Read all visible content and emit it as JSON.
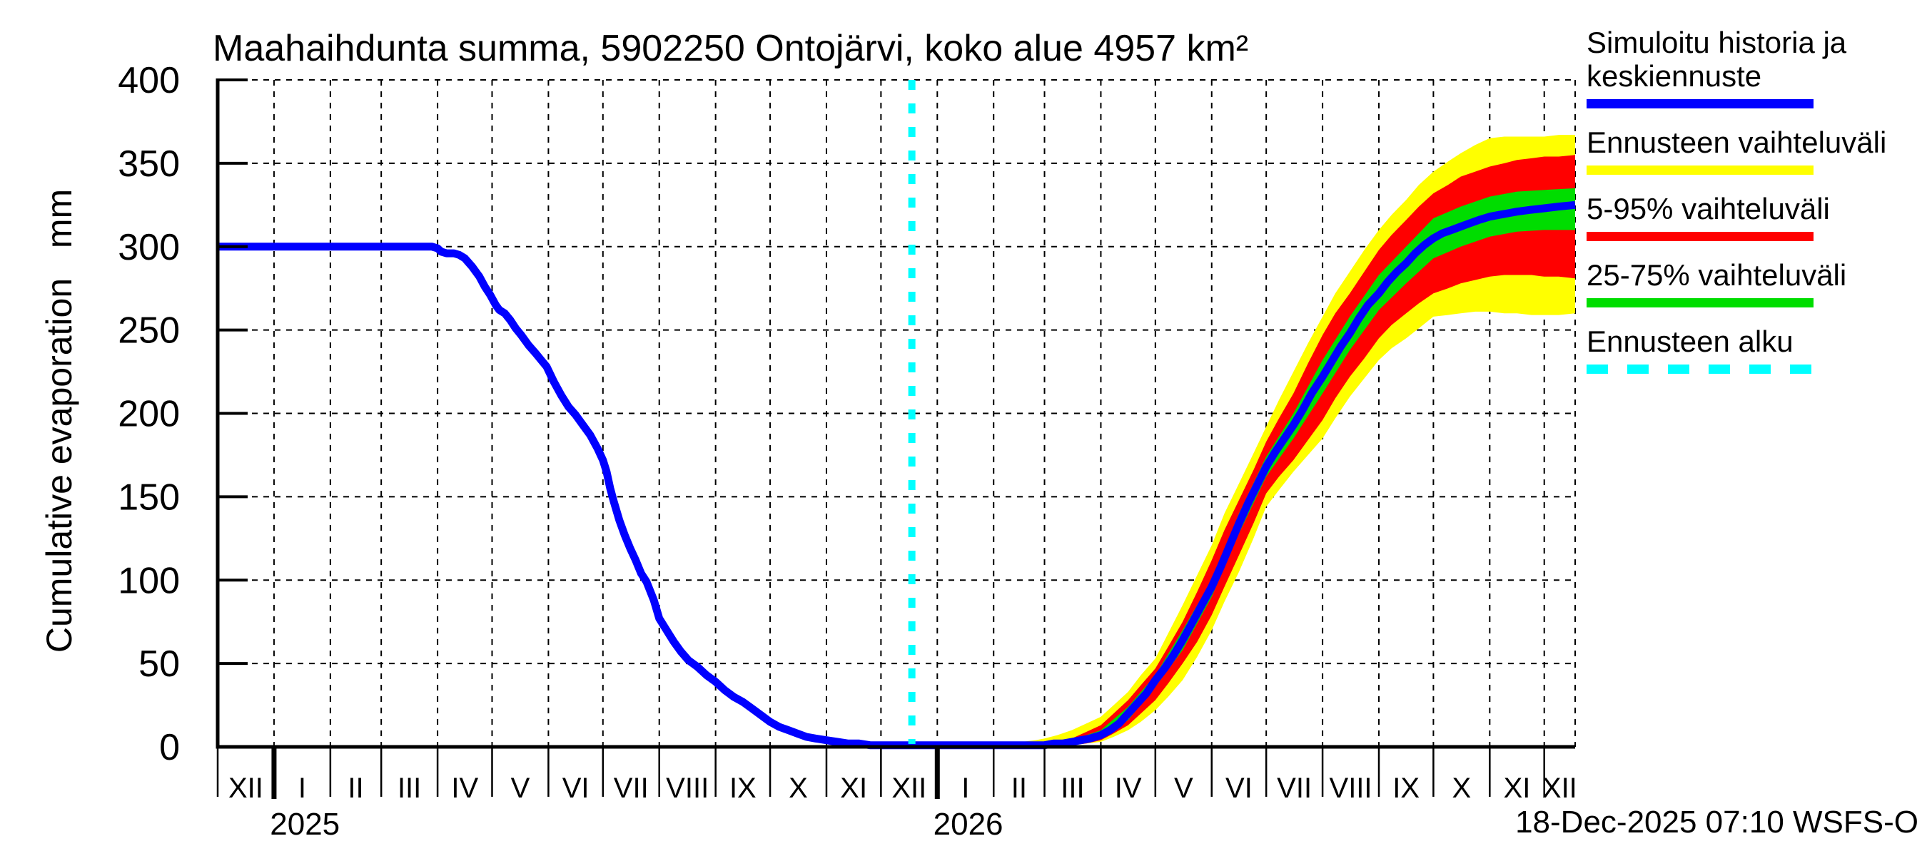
{
  "chart_data": {
    "type": "line",
    "title": "Maahaihdunta summa, 5902250 Ontojärvi, koko alue 4957 km²",
    "ylabel": "Cumulative evaporation   mm",
    "footer": "18-Dec-2025 07:10 WSFS-O",
    "ylim": [
      0,
      400
    ],
    "yticks": [
      0,
      50,
      100,
      150,
      200,
      250,
      300,
      350,
      400
    ],
    "grid": true,
    "x_axis": {
      "start_date": "01-Dec-2024",
      "end_date": "18-Dec-2026",
      "total_days": 747,
      "month_boundaries_days": [
        0,
        31,
        62,
        90,
        121,
        151,
        182,
        212,
        243,
        274,
        304,
        335,
        365,
        396,
        427,
        455,
        486,
        516,
        547,
        577,
        608,
        639,
        669,
        700,
        730,
        747
      ],
      "month_labels": [
        "XII",
        "I",
        "II",
        "III",
        "IV",
        "V",
        "VI",
        "VII",
        "VIII",
        "IX",
        "X",
        "XI",
        "XII",
        "I",
        "II",
        "III",
        "IV",
        "V",
        "VI",
        "VII",
        "VIII",
        "IX",
        "X",
        "XI",
        "XII"
      ],
      "year_tick_days": [
        31,
        396
      ],
      "year_labels": [
        {
          "label": "2025",
          "day": 48
        },
        {
          "label": "2026",
          "day": 413
        }
      ]
    },
    "forecast_start_day": 382,
    "forecast_start_label": "Ennusteen alku",
    "colors": {
      "median": "#0000ff",
      "range_full": "#ffff00",
      "range_5_95": "#ff0000",
      "range_25_75": "#00dd00",
      "forecast_start": "#00ffff",
      "axis": "#000000"
    },
    "series": [
      {
        "name": "Simuloitu historia ja keskiennuste",
        "style": "line",
        "points": [
          [
            0,
            300
          ],
          [
            115,
            300
          ],
          [
            118,
            300
          ],
          [
            121,
            299
          ],
          [
            123,
            297
          ],
          [
            126,
            296
          ],
          [
            130,
            296
          ],
          [
            133,
            295
          ],
          [
            136,
            293
          ],
          [
            140,
            288
          ],
          [
            144,
            282
          ],
          [
            147,
            276
          ],
          [
            150,
            271
          ],
          [
            153,
            265
          ],
          [
            155,
            262
          ],
          [
            158,
            260
          ],
          [
            161,
            256
          ],
          [
            164,
            251
          ],
          [
            167,
            247
          ],
          [
            171,
            241
          ],
          [
            175,
            236
          ],
          [
            178,
            232
          ],
          [
            181,
            228
          ],
          [
            185,
            219
          ],
          [
            189,
            211
          ],
          [
            193,
            204
          ],
          [
            197,
            199
          ],
          [
            201,
            193
          ],
          [
            205,
            187
          ],
          [
            209,
            179
          ],
          [
            212,
            172
          ],
          [
            214,
            165
          ],
          [
            216,
            155
          ],
          [
            218,
            147
          ],
          [
            221,
            136
          ],
          [
            224,
            127
          ],
          [
            227,
            119
          ],
          [
            230,
            112
          ],
          [
            233,
            104
          ],
          [
            236,
            99
          ],
          [
            240,
            88
          ],
          [
            243,
            77
          ],
          [
            247,
            70
          ],
          [
            251,
            63
          ],
          [
            255,
            57
          ],
          [
            259,
            52
          ],
          [
            264,
            48
          ],
          [
            269,
            43
          ],
          [
            274,
            39
          ],
          [
            279,
            34
          ],
          [
            284,
            30
          ],
          [
            289,
            27
          ],
          [
            294,
            23
          ],
          [
            299,
            19
          ],
          [
            304,
            15
          ],
          [
            309,
            12
          ],
          [
            314,
            10
          ],
          [
            319,
            8
          ],
          [
            324,
            6
          ],
          [
            329,
            5
          ],
          [
            335,
            4
          ],
          [
            341,
            3
          ],
          [
            347,
            2
          ],
          [
            353,
            2
          ],
          [
            359,
            1
          ],
          [
            365,
            1
          ],
          [
            372,
            1
          ],
          [
            382,
            1
          ],
          [
            400,
            1
          ],
          [
            420,
            1
          ],
          [
            440,
            1
          ],
          [
            450,
            1
          ],
          [
            455,
            1
          ],
          [
            460,
            2
          ],
          [
            465,
            2
          ],
          [
            470,
            3
          ],
          [
            475,
            4
          ],
          [
            480,
            5
          ],
          [
            486,
            7
          ],
          [
            491,
            10
          ],
          [
            496,
            14
          ],
          [
            501,
            20
          ],
          [
            506,
            26
          ],
          [
            511,
            32
          ],
          [
            516,
            40
          ],
          [
            521,
            47
          ],
          [
            526,
            55
          ],
          [
            531,
            64
          ],
          [
            536,
            74
          ],
          [
            541,
            84
          ],
          [
            547,
            96
          ],
          [
            552,
            108
          ],
          [
            557,
            121
          ],
          [
            562,
            134
          ],
          [
            567,
            146
          ],
          [
            572,
            157
          ],
          [
            577,
            168
          ],
          [
            582,
            177
          ],
          [
            587,
            185
          ],
          [
            592,
            193
          ],
          [
            597,
            202
          ],
          [
            602,
            212
          ],
          [
            608,
            222
          ],
          [
            613,
            231
          ],
          [
            618,
            240
          ],
          [
            623,
            248
          ],
          [
            628,
            257
          ],
          [
            633,
            265
          ],
          [
            639,
            272
          ],
          [
            644,
            279
          ],
          [
            649,
            285
          ],
          [
            654,
            290
          ],
          [
            659,
            296
          ],
          [
            664,
            301
          ],
          [
            669,
            305
          ],
          [
            674,
            308
          ],
          [
            679,
            310
          ],
          [
            684,
            312
          ],
          [
            689,
            314
          ],
          [
            694,
            316
          ],
          [
            700,
            318
          ],
          [
            705,
            319
          ],
          [
            710,
            320
          ],
          [
            715,
            321
          ],
          [
            722,
            322
          ],
          [
            730,
            323
          ],
          [
            738,
            324
          ],
          [
            747,
            325
          ]
        ]
      },
      {
        "name": "Ennusteen vaihteluväli",
        "style": "band",
        "points": [
          [
            382,
            0,
            1
          ],
          [
            420,
            0,
            1
          ],
          [
            435,
            0,
            2
          ],
          [
            450,
            0,
            4
          ],
          [
            455,
            0,
            5
          ],
          [
            462,
            0,
            7
          ],
          [
            470,
            1,
            10
          ],
          [
            478,
            2,
            14
          ],
          [
            486,
            3,
            18
          ],
          [
            493,
            6,
            25
          ],
          [
            501,
            10,
            33
          ],
          [
            508,
            15,
            43
          ],
          [
            516,
            22,
            53
          ],
          [
            523,
            30,
            68
          ],
          [
            531,
            40,
            85
          ],
          [
            539,
            54,
            103
          ],
          [
            547,
            70,
            121
          ],
          [
            554,
            87,
            140
          ],
          [
            562,
            105,
            158
          ],
          [
            570,
            125,
            176
          ],
          [
            577,
            144,
            192
          ],
          [
            584,
            154,
            208
          ],
          [
            592,
            165,
            225
          ],
          [
            600,
            175,
            242
          ],
          [
            608,
            185,
            258
          ],
          [
            615,
            197,
            272
          ],
          [
            623,
            210,
            285
          ],
          [
            631,
            221,
            298
          ],
          [
            639,
            232,
            310
          ],
          [
            646,
            239,
            319
          ],
          [
            654,
            245,
            328
          ],
          [
            661,
            251,
            337
          ],
          [
            669,
            258,
            345
          ],
          [
            677,
            259,
            351
          ],
          [
            684,
            260,
            356
          ],
          [
            692,
            261,
            361
          ],
          [
            700,
            261,
            365
          ],
          [
            708,
            260,
            366
          ],
          [
            715,
            260,
            366
          ],
          [
            723,
            259,
            366
          ],
          [
            730,
            259,
            366
          ],
          [
            738,
            259,
            367
          ],
          [
            747,
            260,
            367
          ]
        ]
      },
      {
        "name": "5-95% vaihteluväli",
        "style": "band",
        "points": [
          [
            382,
            0,
            1
          ],
          [
            450,
            0,
            2
          ],
          [
            455,
            0,
            2
          ],
          [
            462,
            1,
            4
          ],
          [
            470,
            1,
            5
          ],
          [
            478,
            2,
            9
          ],
          [
            486,
            4,
            13
          ],
          [
            493,
            8,
            20
          ],
          [
            501,
            13,
            28
          ],
          [
            508,
            20,
            37
          ],
          [
            516,
            28,
            47
          ],
          [
            523,
            38,
            60
          ],
          [
            531,
            50,
            75
          ],
          [
            539,
            63,
            93
          ],
          [
            547,
            79,
            112
          ],
          [
            554,
            96,
            130
          ],
          [
            562,
            115,
            148
          ],
          [
            570,
            134,
            166
          ],
          [
            577,
            152,
            183
          ],
          [
            584,
            162,
            197
          ],
          [
            592,
            172,
            212
          ],
          [
            600,
            184,
            230
          ],
          [
            608,
            196,
            247
          ],
          [
            615,
            209,
            260
          ],
          [
            623,
            222,
            272
          ],
          [
            631,
            233,
            285
          ],
          [
            639,
            245,
            298
          ],
          [
            646,
            253,
            307
          ],
          [
            654,
            260,
            316
          ],
          [
            661,
            266,
            324
          ],
          [
            669,
            272,
            332
          ],
          [
            677,
            275,
            337
          ],
          [
            684,
            278,
            342
          ],
          [
            692,
            280,
            345
          ],
          [
            700,
            282,
            348
          ],
          [
            708,
            283,
            350
          ],
          [
            715,
            283,
            352
          ],
          [
            723,
            283,
            353
          ],
          [
            730,
            282,
            354
          ],
          [
            738,
            282,
            354
          ],
          [
            747,
            281,
            355
          ]
        ]
      },
      {
        "name": "25-75% vaihteluväli",
        "style": "band",
        "points": [
          [
            382,
            0,
            1
          ],
          [
            455,
            0,
            1
          ],
          [
            470,
            2,
            4
          ],
          [
            486,
            5,
            10
          ],
          [
            501,
            16,
            24
          ],
          [
            516,
            36,
            43
          ],
          [
            531,
            58,
            70
          ],
          [
            547,
            90,
            100
          ],
          [
            562,
            128,
            140
          ],
          [
            577,
            162,
            174
          ],
          [
            592,
            185,
            200
          ],
          [
            608,
            212,
            232
          ],
          [
            623,
            238,
            258
          ],
          [
            639,
            262,
            283
          ],
          [
            654,
            278,
            300
          ],
          [
            669,
            293,
            317
          ],
          [
            684,
            300,
            324
          ],
          [
            700,
            306,
            330
          ],
          [
            715,
            309,
            333
          ],
          [
            730,
            310,
            334
          ],
          [
            747,
            310,
            335
          ]
        ]
      }
    ]
  },
  "legend": {
    "items": [
      {
        "label": "Simuloitu historia ja keskiennuste",
        "color": "#0000ff",
        "style": "solid"
      },
      {
        "label": "Ennusteen vaihteluväli",
        "color": "#ffff00",
        "style": "solid"
      },
      {
        "label": "5-95% vaihteluväli",
        "color": "#ff0000",
        "style": "solid"
      },
      {
        "label": "25-75% vaihteluväli",
        "color": "#00dd00",
        "style": "solid"
      },
      {
        "label": "Ennusteen alku",
        "color": "#00ffff",
        "style": "dashed"
      }
    ]
  }
}
